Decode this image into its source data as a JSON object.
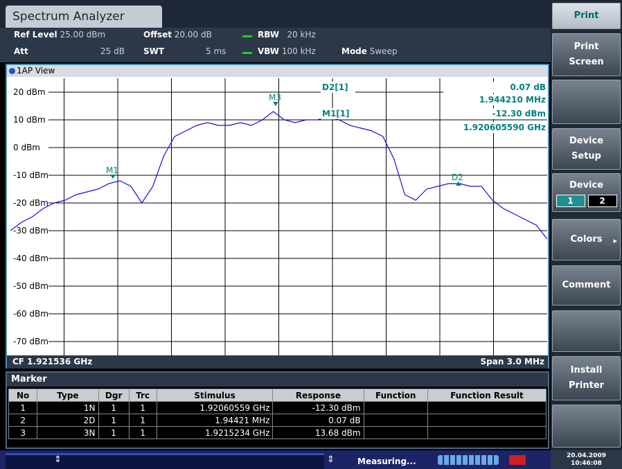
{
  "tab": "Spectrum Analyzer",
  "header": {
    "ref_level_label": "Ref Level",
    "ref_level": "25.00 dBm",
    "offset_label": "Offset",
    "offset": "20.00 dB",
    "rbw_label": "RBW",
    "rbw": "20 kHz",
    "att_label": "Att",
    "att": "25 dB",
    "swt_label": "SWT",
    "swt": "5 ms",
    "vbw_label": "VBW",
    "vbw": "100 kHz",
    "mode_label": "Mode",
    "mode": "Sweep"
  },
  "view": "1AP View",
  "plot": {
    "ylim": [
      -75,
      25
    ],
    "yticks": [
      {
        "value": 20,
        "label": "20 dBm"
      },
      {
        "value": 10,
        "label": "10 dBm"
      },
      {
        "value": 0,
        "label": "0 dBm"
      },
      {
        "value": -10,
        "label": "-10 dBm"
      },
      {
        "value": -20,
        "label": "-20 dBm"
      },
      {
        "value": -30,
        "label": "-30 dBm"
      },
      {
        "value": -40,
        "label": "-40 dBm"
      },
      {
        "value": -50,
        "label": "-50 dBm"
      },
      {
        "value": -60,
        "label": "-60 dBm"
      },
      {
        "value": -70,
        "label": "-70 dBm"
      }
    ],
    "trace": [
      -30,
      -27,
      -25,
      -22,
      -20,
      -19,
      -17,
      -16,
      -15,
      -13,
      -12,
      -14,
      -20,
      -14,
      -3,
      4,
      6,
      8,
      9,
      8,
      8,
      9,
      8,
      10,
      13,
      10,
      9,
      10,
      10,
      11,
      10,
      8,
      7,
      6,
      4,
      -4,
      -17,
      -19,
      -15,
      -14,
      -13,
      -13,
      -14,
      -14,
      -19,
      -22,
      -24,
      -26,
      -28,
      -33
    ],
    "markers": [
      "M1",
      "M3",
      "D2"
    ],
    "readout": {
      "d2_name": "D2[1]",
      "d2_level": "0.07 dB",
      "d2_freq": "1.944210 MHz",
      "m1_name": "M1[1]",
      "m1_level": "-12.30 dBm",
      "m1_freq": "1.920605590 GHz"
    },
    "cf": "CF 1.921536 GHz",
    "span": "Span 3.0 MHz"
  },
  "marker_table": {
    "title": "Marker",
    "columns": [
      "No",
      "Type",
      "Dgr",
      "Trc",
      "Stimulus",
      "Response",
      "Function",
      "Function Result"
    ],
    "rows": [
      [
        "1",
        "1N",
        "1",
        "1",
        "1.92060559 GHz",
        "-12.30 dBm"
      ],
      [
        "2",
        "2D",
        "1",
        "1",
        "1.94421 MHz",
        "0.07 dB"
      ],
      [
        "3",
        "3N",
        "1",
        "1",
        "1.9215234 GHz",
        "13.68 dBm"
      ]
    ]
  },
  "softkeys": [
    [
      "Print"
    ],
    [
      "Print",
      "Screen"
    ],
    [],
    [
      "Device",
      "Setup"
    ],
    [
      "Device"
    ],
    [
      "Colors"
    ],
    [
      "Comment"
    ],
    [],
    [
      "Install",
      "Printer"
    ],
    []
  ],
  "device_options": [
    "1",
    "2"
  ],
  "status": {
    "message": "Measuring...",
    "date": "20.04.2009",
    "time": "10:46:08"
  }
}
